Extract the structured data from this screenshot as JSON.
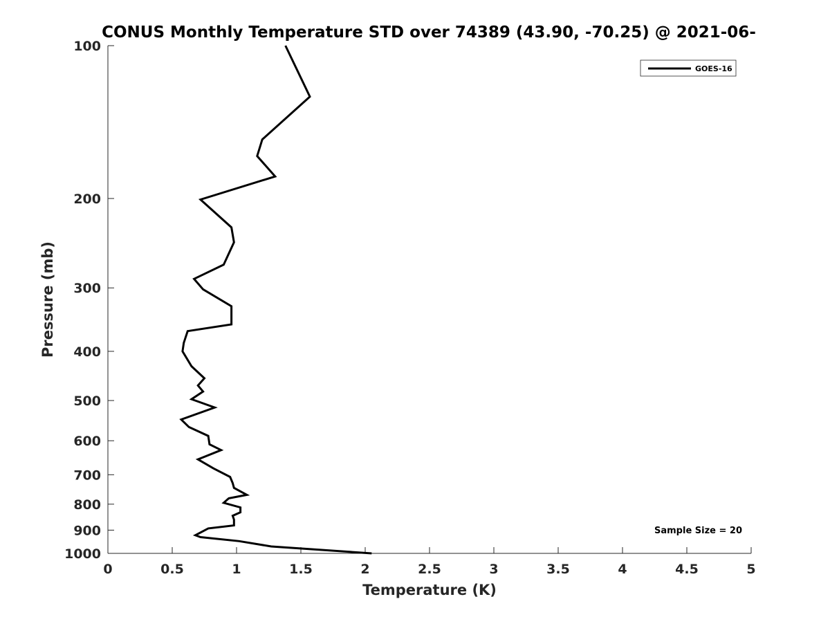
{
  "chart_data": {
    "type": "line",
    "title": "CONUS Monthly Temperature STD over 74389 (43.90, -70.25) @ 2021-06-",
    "xlabel": "Temperature (K)",
    "ylabel": "Pressure (mb)",
    "xlim": [
      0,
      5
    ],
    "ylim": [
      100,
      1000
    ],
    "y_scale": "log",
    "y_reversed": true,
    "xticks": [
      0,
      0.5,
      1,
      1.5,
      2,
      2.5,
      3,
      3.5,
      4,
      4.5,
      5
    ],
    "xtick_labels": [
      "0",
      "0.5",
      "1",
      "1.5",
      "2",
      "2.5",
      "3",
      "3.5",
      "4",
      "4.5",
      "5"
    ],
    "yticks": [
      100,
      200,
      300,
      400,
      500,
      600,
      700,
      800,
      900,
      1000
    ],
    "ytick_labels": [
      "100",
      "200",
      "300",
      "400",
      "500",
      "600",
      "700",
      "800",
      "900",
      "1000"
    ],
    "grid": false,
    "legend_position": "top-right",
    "annotation": "Sample Size = 20",
    "series": [
      {
        "name": "GOES-16",
        "color": "#000000",
        "points": [
          [
            1.38,
            100
          ],
          [
            1.57,
            126
          ],
          [
            1.2,
            153
          ],
          [
            1.16,
            165
          ],
          [
            1.3,
            181
          ],
          [
            0.72,
            201
          ],
          [
            0.96,
            228
          ],
          [
            0.98,
            244
          ],
          [
            0.9,
            270
          ],
          [
            0.67,
            288
          ],
          [
            0.74,
            302
          ],
          [
            0.96,
            326
          ],
          [
            0.96,
            354
          ],
          [
            0.62,
            365
          ],
          [
            0.59,
            385
          ],
          [
            0.58,
            400
          ],
          [
            0.65,
            428
          ],
          [
            0.75,
            452
          ],
          [
            0.7,
            467
          ],
          [
            0.74,
            480
          ],
          [
            0.65,
            497
          ],
          [
            0.83,
            516
          ],
          [
            0.57,
            545
          ],
          [
            0.63,
            564
          ],
          [
            0.78,
            587
          ],
          [
            0.79,
            610
          ],
          [
            0.88,
            626
          ],
          [
            0.7,
            653
          ],
          [
            0.82,
            680
          ],
          [
            0.95,
            707
          ],
          [
            0.97,
            727
          ],
          [
            0.98,
            743
          ],
          [
            1.08,
            767
          ],
          [
            0.94,
            779
          ],
          [
            0.9,
            795
          ],
          [
            1.03,
            812
          ],
          [
            1.03,
            830
          ],
          [
            0.97,
            843
          ],
          [
            0.98,
            858
          ],
          [
            0.98,
            881
          ],
          [
            0.78,
            893
          ],
          [
            0.68,
            921
          ],
          [
            0.72,
            929
          ],
          [
            1.02,
            946
          ],
          [
            1.27,
            969
          ],
          [
            2.05,
            1000
          ]
        ]
      }
    ]
  }
}
